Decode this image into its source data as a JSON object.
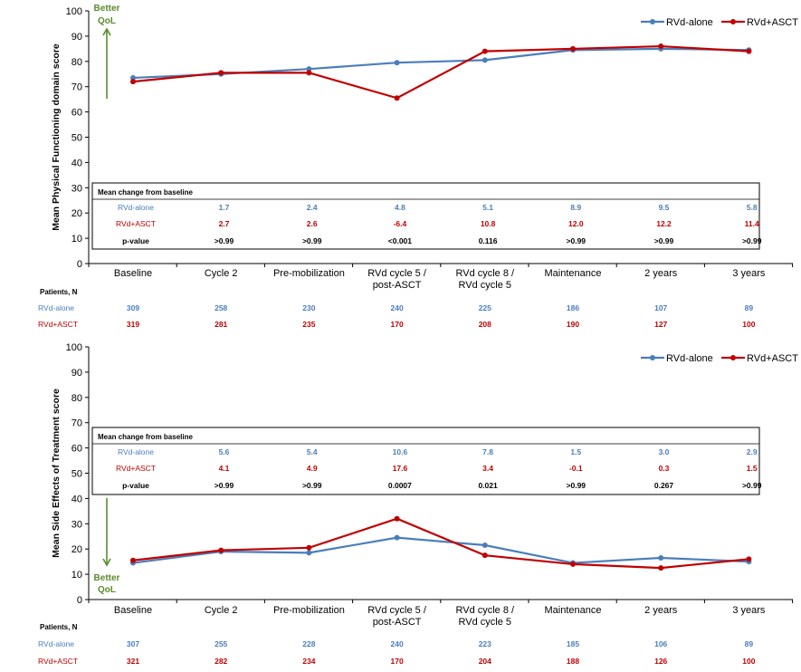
{
  "colors": {
    "rvd_alone": "#4a7ebb",
    "rvd_asct": "#c00000",
    "axis": "#000000",
    "qol_arrow": "#5c8a2e",
    "pvalue": "#000000"
  },
  "legend": {
    "rvd_alone": "RVd-alone",
    "rvd_asct": "RVd+ASCT"
  },
  "categories": [
    [
      "Baseline"
    ],
    [
      "Cycle 2"
    ],
    [
      "Pre-mobilization"
    ],
    [
      "RVd cycle 5 /",
      "post-ASCT"
    ],
    [
      "RVd cycle 8 /",
      "RVd cycle 5"
    ],
    [
      "Maintenance"
    ],
    [
      "2 years"
    ],
    [
      "3 years"
    ]
  ],
  "chart_data": [
    {
      "type": "line",
      "ylabel": "Mean Physical Functioning domain score",
      "ylim": [
        0,
        100
      ],
      "yticks": [
        0,
        10,
        20,
        30,
        40,
        50,
        60,
        70,
        80,
        90,
        100
      ],
      "grid": false,
      "legend_position": "top-right",
      "qol_label": [
        "Better",
        "QoL"
      ],
      "qol_direction": "up",
      "series": [
        {
          "name": "RVd-alone",
          "key": "rvd_alone",
          "values": [
            73.5,
            75.0,
            77.0,
            79.5,
            80.5,
            84.5,
            85.0,
            84.5
          ]
        },
        {
          "name": "RVd+ASCT",
          "key": "rvd_asct",
          "values": [
            72.0,
            75.5,
            75.5,
            65.5,
            84.0,
            85.0,
            86.0,
            84.0
          ]
        }
      ],
      "table": {
        "title": "Mean change from baseline",
        "rows": [
          {
            "label": "RVd-alone",
            "key": "rvd_alone",
            "values": [
              "1.7",
              "2.4",
              "4.8",
              "5.1",
              "8.9",
              "9.5",
              "5.8"
            ]
          },
          {
            "label": "RVd+ASCT",
            "key": "rvd_asct",
            "values": [
              "2.7",
              "2.6",
              "-6.4",
              "10.8",
              "12.0",
              "12.2",
              "11.4"
            ]
          },
          {
            "label": "p-value",
            "key": "pvalue",
            "values": [
              ">0.99",
              ">0.99",
              "<0.001",
              "0.116",
              ">0.99",
              ">0.99",
              ">0.99"
            ]
          }
        ]
      },
      "patients": {
        "title": "Patients, N",
        "rows": [
          {
            "label": "RVd-alone",
            "key": "rvd_alone",
            "values": [
              "309",
              "258",
              "230",
              "240",
              "225",
              "186",
              "107",
              "89"
            ]
          },
          {
            "label": "RVd+ASCT",
            "key": "rvd_asct",
            "values": [
              "319",
              "281",
              "235",
              "170",
              "208",
              "190",
              "127",
              "100"
            ]
          }
        ]
      }
    },
    {
      "type": "line",
      "ylabel": "Mean Side Effects of Treatment score",
      "ylim": [
        0,
        100
      ],
      "yticks": [
        0,
        10,
        20,
        30,
        40,
        50,
        60,
        70,
        80,
        90,
        100
      ],
      "grid": false,
      "legend_position": "top-right",
      "qol_label": [
        "Better",
        "QoL"
      ],
      "qol_direction": "down",
      "series": [
        {
          "name": "RVd-alone",
          "key": "rvd_alone",
          "values": [
            14.5,
            19.0,
            18.5,
            24.5,
            21.5,
            14.5,
            16.5,
            15.0
          ]
        },
        {
          "name": "RVd+ASCT",
          "key": "rvd_asct",
          "values": [
            15.5,
            19.5,
            20.5,
            32.0,
            17.5,
            14.0,
            12.5,
            16.0
          ]
        }
      ],
      "table": {
        "title": "Mean change from baseline",
        "rows": [
          {
            "label": "RVd-alone",
            "key": "rvd_alone",
            "values": [
              "5.6",
              "5.4",
              "10.6",
              "7.8",
              "1.5",
              "3.0",
              "2.9"
            ]
          },
          {
            "label": "RVd+ASCT",
            "key": "rvd_asct",
            "values": [
              "4.1",
              "4.9",
              "17.6",
              "3.4",
              "-0.1",
              "0.3",
              "1.5"
            ]
          },
          {
            "label": "p-value",
            "key": "pvalue",
            "values": [
              ">0.99",
              ">0.99",
              "0.0007",
              "0.021",
              ">0.99",
              "0.267",
              ">0.99"
            ]
          }
        ]
      },
      "patients": {
        "title": "Patients, N",
        "rows": [
          {
            "label": "RVd-alone",
            "key": "rvd_alone",
            "values": [
              "307",
              "255",
              "228",
              "240",
              "223",
              "185",
              "106",
              "89"
            ]
          },
          {
            "label": "RVd+ASCT",
            "key": "rvd_asct",
            "values": [
              "321",
              "282",
              "234",
              "170",
              "204",
              "188",
              "126",
              "100"
            ]
          }
        ]
      }
    }
  ]
}
